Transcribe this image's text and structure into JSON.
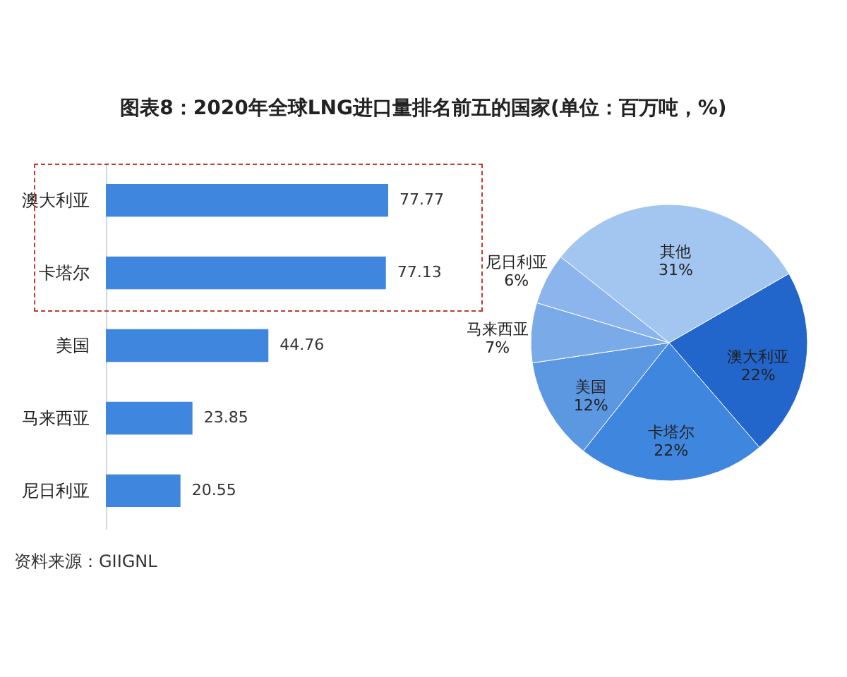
{
  "chart_data": [
    {
      "type": "bar",
      "title": "图表8：2020年全球LNG进口量排名前五的国家(单位：百万吨，%)",
      "orientation": "horizontal",
      "categories": [
        "澳大利亚",
        "卡塔尔",
        "美国",
        "马来西亚",
        "尼日利亚"
      ],
      "values": [
        77.77,
        77.13,
        44.76,
        23.85,
        20.55
      ],
      "color": "#3f86de",
      "data_labels": true,
      "annotations": [
        "资料来源：GIIGNL"
      ]
    },
    {
      "type": "pie",
      "categories": [
        "澳大利亚",
        "卡塔尔",
        "美国",
        "马来西亚",
        "尼日利亚",
        "其他"
      ],
      "values": [
        22,
        22,
        12,
        7,
        6,
        31
      ],
      "value_labels": [
        "22%",
        "22%",
        "12%",
        "7%",
        "6%",
        "31%"
      ],
      "colors": [
        "#2266cc",
        "#3f86de",
        "#5c97e2",
        "#7aaae8",
        "#8bb5ec",
        "#a3c6f0"
      ]
    }
  ]
}
